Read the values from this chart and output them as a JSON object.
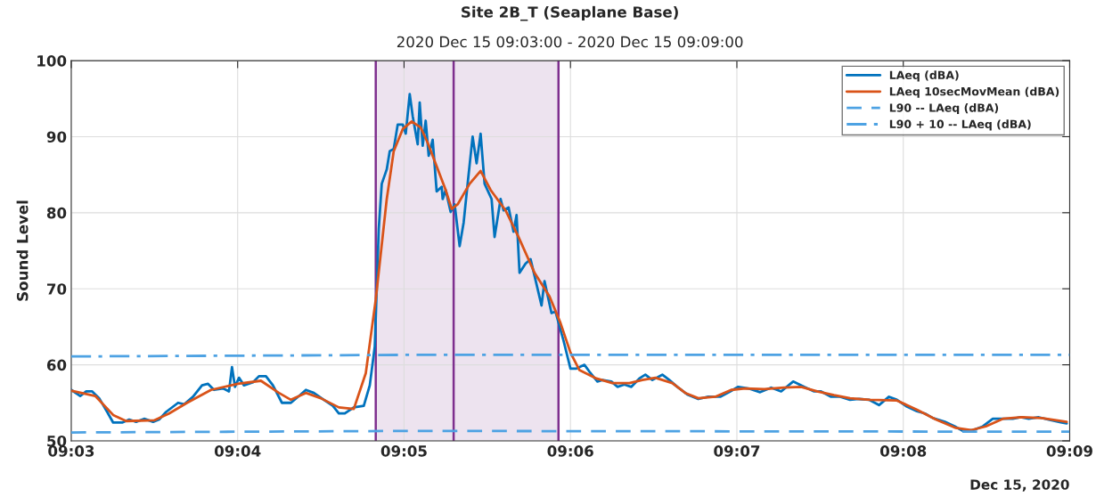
{
  "chart_data": {
    "type": "line",
    "title": "Site 2B_T (Seaplane Base)",
    "subtitle": "2020 Dec 15 09:03:00 - 2020 Dec 15 09:09:00",
    "ylabel": "Sound Level",
    "annotations": [
      "Dec 15, 2020"
    ],
    "xlim": [
      9.05,
      9.15
    ],
    "xticks": [
      {
        "value": 9.05,
        "label": "09:03"
      },
      {
        "value": 9.066667,
        "label": "09:04"
      },
      {
        "value": 9.083333,
        "label": "09:05"
      },
      {
        "value": 9.1,
        "label": "09:06"
      },
      {
        "value": 9.116667,
        "label": "09:07"
      },
      {
        "value": 9.133333,
        "label": "09:08"
      },
      {
        "value": 9.15,
        "label": "09:09"
      }
    ],
    "ylim": [
      50,
      100
    ],
    "yticks": [
      50,
      60,
      70,
      80,
      90,
      100
    ],
    "grid": true,
    "legend": "top right",
    "ref_lines": [
      {
        "axis": "x",
        "value": 9.0805,
        "color": "#7e2f8e"
      },
      {
        "axis": "x",
        "value": 9.0883,
        "color": "#7e2f8e"
      },
      {
        "axis": "x",
        "value": 9.0988,
        "color": "#7e2f8e"
      }
    ],
    "bands": [
      {
        "axis": "x",
        "from": 9.0805,
        "to": 9.0988,
        "color": "#ede3ef"
      }
    ],
    "series": [
      {
        "name": "LAeq (dBA)",
        "color": "#0072bd",
        "line_style": "solid",
        "x": [
          9.05,
          9.0509,
          9.0515,
          9.0521,
          9.0528,
          9.0536,
          9.0542,
          9.0551,
          9.0558,
          9.0565,
          9.0573,
          9.0582,
          9.0588,
          9.0595,
          9.0607,
          9.0613,
          9.0622,
          9.0631,
          9.0637,
          9.0643,
          9.0652,
          9.0658,
          9.0661,
          9.0664,
          9.0668,
          9.0673,
          9.0682,
          9.0688,
          9.0695,
          9.0702,
          9.0711,
          9.072,
          9.0729,
          9.0735,
          9.0743,
          9.0753,
          9.0762,
          9.0768,
          9.0774,
          9.0783,
          9.0793,
          9.0799,
          9.0804,
          9.0808,
          9.0811,
          9.0816,
          9.0819,
          9.0823,
          9.0827,
          9.0832,
          9.0835,
          9.0839,
          9.0842,
          9.0847,
          9.0849,
          9.0852,
          9.0855,
          9.0858,
          9.0862,
          9.0866,
          9.0871,
          9.0872,
          9.0875,
          9.088,
          9.0884,
          9.0889,
          9.0893,
          9.0897,
          9.0902,
          9.0906,
          9.091,
          9.0914,
          9.0921,
          9.0924,
          9.093,
          9.0933,
          9.0938,
          9.0943,
          9.0946,
          9.0949,
          9.0955,
          9.096,
          9.0964,
          9.0971,
          9.0974,
          9.0981,
          9.0985,
          9.0993,
          9.1,
          9.1006,
          9.1014,
          9.1019,
          9.1027,
          9.1032,
          9.1041,
          9.1047,
          9.1054,
          9.1061,
          9.1069,
          9.1075,
          9.1082,
          9.1092,
          9.1099,
          9.1107,
          9.1117,
          9.1128,
          9.1138,
          9.115,
          9.116,
          9.1168,
          9.1178,
          9.119,
          9.1201,
          9.1211,
          9.1223,
          9.1234,
          9.1244,
          9.1251,
          9.1261,
          9.127,
          9.128,
          9.1289,
          9.1299,
          9.1309,
          9.1319,
          9.1327,
          9.1337,
          9.1347,
          9.1355,
          9.1363,
          9.1375,
          9.1385,
          9.1393,
          9.1403,
          9.1413,
          9.1423,
          9.1433,
          9.1443,
          9.1451,
          9.1459,
          9.1469,
          9.1479,
          9.1492,
          9.1497
        ],
        "values": [
          56.7,
          55.9,
          56.5,
          56.5,
          55.6,
          53.8,
          52.4,
          52.4,
          52.8,
          52.5,
          52.9,
          52.5,
          52.8,
          53.8,
          55.0,
          54.8,
          55.8,
          57.3,
          57.5,
          56.7,
          56.9,
          56.5,
          59.7,
          57.1,
          58.3,
          57.3,
          57.7,
          58.5,
          58.5,
          57.3,
          55.0,
          55.0,
          56.0,
          56.7,
          56.3,
          55.4,
          54.6,
          53.6,
          53.6,
          54.4,
          54.6,
          57.3,
          62.4,
          77.9,
          83.8,
          85.7,
          88.1,
          88.4,
          91.6,
          91.6,
          90.4,
          95.6,
          92.7,
          89.0,
          94.5,
          88.8,
          92.1,
          87.5,
          89.6,
          82.8,
          83.4,
          81.8,
          83.0,
          80.1,
          81.1,
          75.6,
          78.7,
          83.8,
          90.0,
          86.5,
          90.4,
          83.8,
          81.8,
          76.8,
          81.8,
          80.3,
          80.7,
          77.5,
          79.7,
          72.1,
          73.3,
          73.9,
          71.7,
          67.8,
          71.0,
          66.8,
          67.0,
          63.2,
          59.5,
          59.5,
          60.0,
          59.1,
          57.8,
          58.0,
          57.8,
          57.1,
          57.4,
          57.1,
          58.2,
          58.7,
          58.0,
          58.7,
          58.0,
          57.1,
          56.1,
          55.5,
          55.8,
          55.8,
          56.5,
          57.1,
          56.9,
          56.4,
          57.0,
          56.5,
          57.8,
          57.1,
          56.5,
          56.5,
          55.8,
          55.8,
          55.4,
          55.5,
          55.4,
          54.7,
          55.8,
          55.4,
          54.5,
          53.9,
          53.6,
          53.0,
          52.5,
          51.9,
          51.3,
          51.4,
          51.9,
          52.9,
          52.9,
          52.9,
          53.1,
          52.9,
          53.1,
          52.8,
          52.4,
          52.3
        ]
      },
      {
        "name": "LAeq 10secMovMean (dBA)",
        "color": "#d95319",
        "line_style": "solid",
        "x": [
          9.05,
          9.0524,
          9.0542,
          9.0555,
          9.0583,
          9.0598,
          9.0616,
          9.064,
          9.0667,
          9.069,
          9.0708,
          9.072,
          9.0735,
          9.075,
          9.0768,
          9.0783,
          9.0795,
          9.0805,
          9.0816,
          9.0823,
          9.0832,
          9.0841,
          9.085,
          9.0857,
          9.0866,
          9.0875,
          9.0881,
          9.0887,
          9.0899,
          9.091,
          9.092,
          9.0935,
          9.0948,
          9.0964,
          9.0979,
          9.099,
          9.1,
          9.1009,
          9.1026,
          9.1042,
          9.1059,
          9.1072,
          9.1085,
          9.1102,
          9.1115,
          9.1128,
          9.1145,
          9.1161,
          9.1175,
          9.1194,
          9.1214,
          9.1231,
          9.1247,
          9.1264,
          9.128,
          9.13,
          9.1327,
          9.1347,
          9.1366,
          9.1386,
          9.1401,
          9.1416,
          9.1433,
          9.1452,
          9.1472,
          9.1497
        ],
        "values": [
          56.6,
          55.9,
          53.4,
          52.6,
          52.7,
          53.6,
          55.0,
          56.7,
          57.5,
          57.9,
          56.3,
          55.4,
          56.3,
          55.6,
          54.4,
          54.2,
          58.9,
          68.6,
          81.8,
          88.1,
          91.0,
          92.0,
          91.2,
          89.2,
          86.1,
          83.0,
          80.5,
          81.1,
          83.8,
          85.5,
          83.0,
          80.3,
          76.8,
          72.1,
          69.0,
          65.5,
          61.6,
          59.3,
          58.2,
          57.6,
          57.6,
          58.0,
          58.3,
          57.6,
          56.3,
          55.6,
          55.8,
          56.7,
          56.9,
          56.8,
          57.0,
          57.1,
          56.5,
          56.0,
          55.6,
          55.4,
          55.3,
          54.1,
          52.8,
          51.7,
          51.4,
          51.9,
          52.9,
          53.1,
          53.0,
          52.5
        ]
      },
      {
        "name": "L90 -- LAeq (dBA)",
        "color": "#4da2e3",
        "line_style": "dashed",
        "x": [
          9.05,
          9.0833,
          9.15
        ],
        "values": [
          51.1,
          51.3,
          51.2
        ]
      },
      {
        "name": "L90 + 10 -- LAeq (dBA)",
        "color": "#4da2e3",
        "line_style": "dashdot",
        "x": [
          9.05,
          9.0833,
          9.15
        ],
        "values": [
          61.1,
          61.3,
          61.3
        ]
      }
    ]
  }
}
